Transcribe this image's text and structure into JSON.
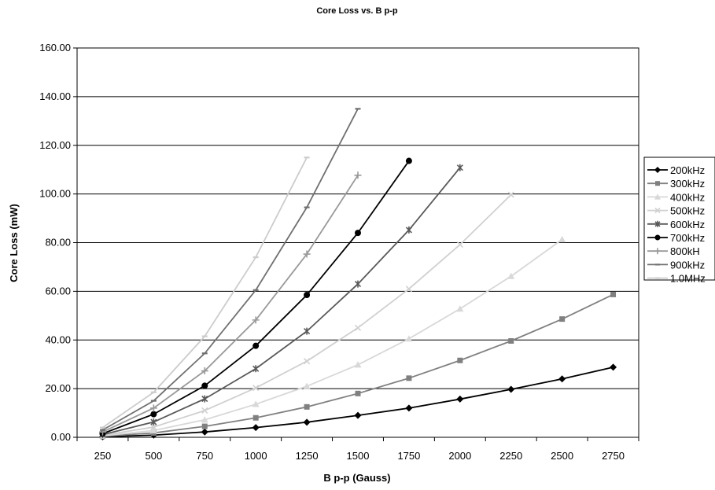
{
  "chart_data": {
    "type": "line",
    "title": "Core Loss vs. B p-p",
    "xlabel": "B p-p (Gauss)",
    "ylabel": "Core Loss (mW)",
    "categories": [
      "250",
      "500",
      "750",
      "1000",
      "1250",
      "1500",
      "1750",
      "2000",
      "2250",
      "2500",
      "2750"
    ],
    "ylim": [
      0,
      160
    ],
    "yticks": [
      "0.00",
      "20.00",
      "40.00",
      "60.00",
      "80.00",
      "100.00",
      "120.00",
      "140.00",
      "160.00"
    ],
    "grid": "horizontal",
    "legend_position": "right",
    "series": [
      {
        "name": "200kHz",
        "color": "#000000",
        "marker": "diamond",
        "values": [
          0.2,
          0.9,
          2.2,
          4.0,
          6.2,
          9.0,
          12.0,
          15.7,
          19.7,
          24.0,
          28.8
        ]
      },
      {
        "name": "300kHz",
        "color": "#808080",
        "marker": "square",
        "values": [
          0.4,
          1.8,
          4.5,
          8.0,
          12.5,
          18.0,
          24.3,
          31.6,
          39.6,
          48.6,
          58.7
        ]
      },
      {
        "name": "400kHz",
        "color": "#d8d8d8",
        "marker": "triangle",
        "values": [
          0.6,
          2.8,
          7.2,
          13.6,
          21.0,
          29.8,
          40.5,
          52.8,
          66.2,
          81.3,
          null
        ]
      },
      {
        "name": "500kHz",
        "color": "#d0d0d0",
        "marker": "x",
        "values": [
          0.8,
          4.2,
          11.0,
          20.3,
          31.3,
          45.0,
          61.0,
          79.2,
          99.7,
          null,
          null
        ]
      },
      {
        "name": "600kHz",
        "color": "#595959",
        "marker": "star",
        "values": [
          1.1,
          6.3,
          15.8,
          28.2,
          43.6,
          63.0,
          85.2,
          110.8,
          null,
          null,
          null
        ]
      },
      {
        "name": "700kHz",
        "color": "#000000",
        "marker": "circle",
        "values": [
          1.5,
          9.5,
          21.2,
          37.6,
          58.5,
          84.0,
          113.6,
          null,
          null,
          null,
          null
        ]
      },
      {
        "name": "800kH",
        "color": "#999999",
        "marker": "plus",
        "values": [
          2.2,
          12.0,
          27.3,
          48.2,
          75.3,
          107.7,
          null,
          null,
          null,
          null,
          null
        ]
      },
      {
        "name": "900kHz",
        "color": "#707070",
        "marker": "dash",
        "values": [
          3.0,
          15.0,
          34.5,
          60.5,
          94.5,
          135.0,
          null,
          null,
          null,
          null,
          null
        ]
      },
      {
        "name": "1.0MHz",
        "color": "#cccccc",
        "marker": "dash",
        "values": [
          4.0,
          18.5,
          41.5,
          74.0,
          115.0,
          null,
          null,
          null,
          null,
          null,
          null
        ]
      }
    ]
  }
}
